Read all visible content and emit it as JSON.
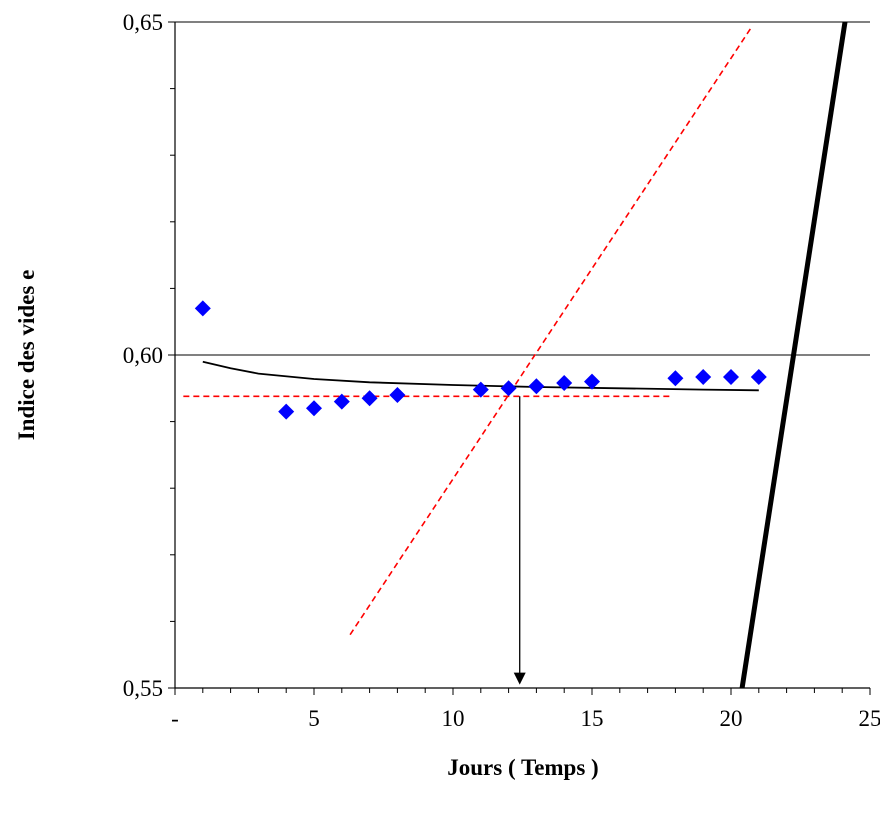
{
  "chart_data": {
    "type": "scatter",
    "title": "",
    "xlabel": "Jours ( Temps )",
    "ylabel": "Indice des vides e",
    "xlim": [
      0,
      25
    ],
    "ylim": [
      0.55,
      0.65
    ],
    "x_tick_labels": [
      {
        "value": 0,
        "label": "-"
      },
      {
        "value": 5,
        "label": "5"
      },
      {
        "value": 10,
        "label": "10"
      },
      {
        "value": 15,
        "label": "15"
      },
      {
        "value": 20,
        "label": "20"
      },
      {
        "value": 25,
        "label": "25"
      }
    ],
    "y_tick_labels": [
      {
        "value": 0.55,
        "label": "0,55"
      },
      {
        "value": 0.6,
        "label": "0,60"
      },
      {
        "value": 0.65,
        "label": "0,65"
      }
    ],
    "x_minor_step": 1,
    "y_minor_step": 0.01,
    "gridlines_y": [
      0.6,
      0.65
    ],
    "marker_color": "#0000ff",
    "points": [
      {
        "x": 1,
        "y": 0.607
      },
      {
        "x": 4,
        "y": 0.5915
      },
      {
        "x": 5,
        "y": 0.592
      },
      {
        "x": 6,
        "y": 0.593
      },
      {
        "x": 7,
        "y": 0.5935
      },
      {
        "x": 8,
        "y": 0.594
      },
      {
        "x": 11,
        "y": 0.5948
      },
      {
        "x": 12,
        "y": 0.595
      },
      {
        "x": 13,
        "y": 0.5953
      },
      {
        "x": 14,
        "y": 0.5958
      },
      {
        "x": 15,
        "y": 0.596
      },
      {
        "x": 18,
        "y": 0.5965
      },
      {
        "x": 19,
        "y": 0.5967
      },
      {
        "x": 20,
        "y": 0.5967
      },
      {
        "x": 21,
        "y": 0.5967
      }
    ],
    "trend_curve": [
      {
        "x": 1,
        "y": 0.599
      },
      {
        "x": 2,
        "y": 0.598
      },
      {
        "x": 3,
        "y": 0.5972
      },
      {
        "x": 5,
        "y": 0.5964
      },
      {
        "x": 7,
        "y": 0.5959
      },
      {
        "x": 10,
        "y": 0.5955
      },
      {
        "x": 13,
        "y": 0.5952
      },
      {
        "x": 16,
        "y": 0.595
      },
      {
        "x": 19,
        "y": 0.5948
      },
      {
        "x": 21,
        "y": 0.5947
      }
    ],
    "horizontal_dashed": {
      "color": "#ff0000",
      "y": 0.5938,
      "x_start": 0.3,
      "x_end": 17.9
    },
    "oblique_dashed": {
      "color": "#ff0000",
      "points": [
        {
          "x": 6.3,
          "y": 0.558
        },
        {
          "x": 20.7,
          "y": 0.649
        }
      ]
    },
    "thick_line": {
      "color": "#000000",
      "points": [
        {
          "x": 20.4,
          "y": 0.55
        },
        {
          "x": 24.1,
          "y": 0.65
        }
      ]
    },
    "arrow": {
      "x": 12.4,
      "y_from": 0.5938,
      "y_to": 0.5505
    }
  }
}
